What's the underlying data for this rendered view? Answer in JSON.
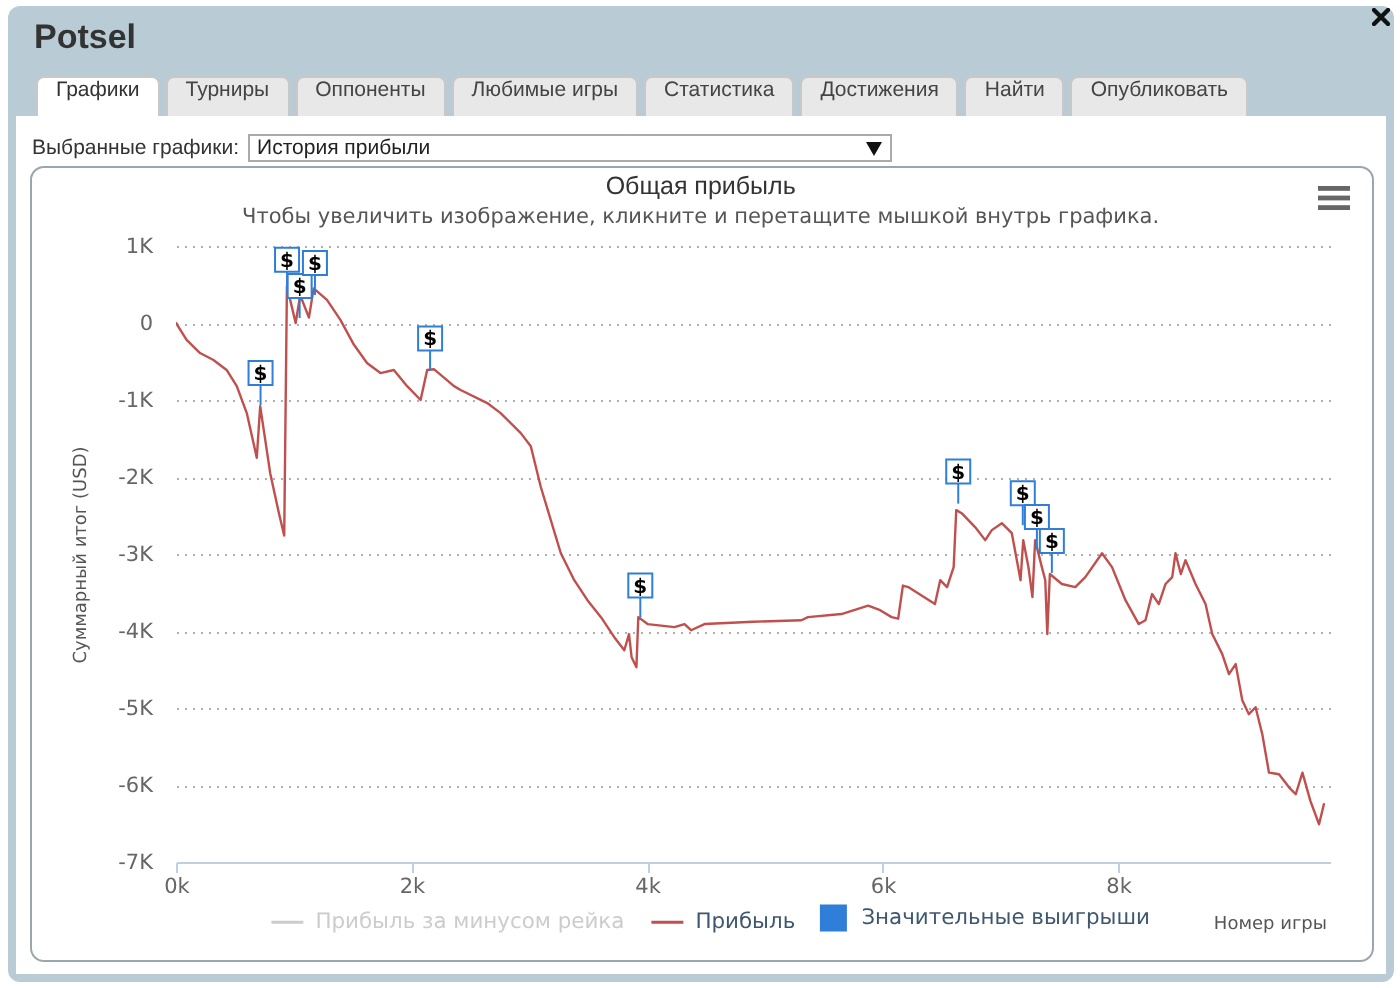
{
  "chart_data": {
    "type": "line",
    "title": "Общая прибыль",
    "subtitle": "Чтобы увеличить изображение, кликните и перетащите мышкой внутрь графика.",
    "xlabel": "Номер игры",
    "ylabel": "Суммарный итог (USD)",
    "annotations": [
      "Potsel",
      "Графики",
      "Турниры",
      "Оппоненты",
      "Любимые игры",
      "Статистика",
      "Достижения",
      "Найти",
      "Опубликовать",
      "Выбранные графики:",
      "История прибыли"
    ],
    "series": [
      {
        "name": "Прибыль за минусом рейка",
        "color": "#cccccc"
      },
      {
        "name": "Прибыль",
        "color": "#c0504d",
        "x": [
          0,
          90,
          204,
          318,
          430,
          516,
          601,
          686,
          715,
          800,
          874,
          919,
          942,
          1016,
          1055,
          1129,
          1169,
          1282,
          1396,
          1510,
          1622,
          1736,
          1850,
          1963,
          2077,
          2133,
          2190,
          2361,
          2417,
          2643,
          2757,
          2928,
          3013,
          3098,
          3183,
          3268,
          3382,
          3494,
          3609,
          3722,
          3807,
          3847,
          3869,
          3910,
          3926,
          4005,
          4233,
          4318,
          4374,
          4488,
          4900,
          5311,
          5367,
          5651,
          5878,
          5980,
          6077,
          6133,
          6173,
          6218,
          6445,
          6490,
          6548,
          6604,
          6626,
          6672,
          6786,
          6872,
          6928,
          7013,
          7098,
          7172,
          7195,
          7239,
          7273,
          7296,
          7353,
          7382,
          7399,
          7421,
          7523,
          7637,
          7722,
          7864,
          7949,
          8063,
          8176,
          8233,
          8289,
          8346,
          8403,
          8460,
          8488,
          8533,
          8573,
          8658,
          8743,
          8800,
          8885,
          8942,
          8999,
          9055,
          9111,
          9168,
          9225,
          9282,
          9367,
          9452,
          9509,
          9566,
          9634,
          9707,
          9748
        ],
        "values": [
          0,
          -220,
          -390,
          -480,
          -610,
          -820,
          -1170,
          -1750,
          -1080,
          -1950,
          -2470,
          -2760,
          480,
          0,
          360,
          70,
          450,
          300,
          40,
          -280,
          -520,
          -650,
          -610,
          -820,
          -1000,
          -610,
          -600,
          -820,
          -870,
          -1040,
          -1170,
          -1430,
          -1600,
          -2130,
          -2560,
          -2990,
          -3340,
          -3600,
          -3820,
          -4080,
          -4250,
          -4040,
          -4340,
          -4470,
          -3820,
          -3910,
          -3950,
          -3910,
          -3990,
          -3910,
          -3880,
          -3860,
          -3820,
          -3780,
          -3670,
          -3730,
          -3820,
          -3840,
          -3410,
          -3430,
          -3650,
          -3340,
          -3430,
          -3170,
          -2430,
          -2470,
          -2650,
          -2820,
          -2690,
          -2600,
          -2730,
          -3340,
          -2820,
          -3170,
          -3560,
          -2820,
          -3170,
          -3340,
          -4040,
          -3260,
          -3390,
          -3430,
          -3300,
          -2990,
          -3170,
          -3600,
          -3910,
          -3860,
          -3520,
          -3650,
          -3390,
          -3300,
          -2990,
          -3260,
          -3080,
          -3390,
          -3650,
          -4040,
          -4300,
          -4560,
          -4430,
          -4900,
          -5080,
          -4990,
          -5340,
          -5840,
          -5860,
          -6030,
          -6120,
          -5840,
          -6210,
          -6510,
          -6250
        ]
      },
      {
        "name": "Значительные выигрыши",
        "type": "scatter",
        "color": "#2f7ed8",
        "marker": "square",
        "x": [
          718,
          943,
          1050,
          1180,
          2158,
          3943,
          6643,
          7191,
          7311,
          7438
        ],
        "values": [
          -650,
          820,
          480,
          780,
          -200,
          -3410,
          -1930,
          -2210,
          -2520,
          -2830
        ],
        "value_labels": [
          "$",
          "$",
          "$",
          "$",
          "$",
          "$",
          "$",
          "$",
          "$",
          "$"
        ]
      }
    ],
    "xlim": [
      0,
      9800
    ],
    "xticks": [
      {
        "value": 0,
        "label": "0k"
      },
      {
        "value": 2000,
        "label": "2k"
      },
      {
        "value": 4000,
        "label": "4k"
      },
      {
        "value": 6000,
        "label": "6k"
      },
      {
        "value": 8000,
        "label": "8k"
      }
    ],
    "ylim": [
      -7000,
      1000
    ],
    "yticks": [
      {
        "value": -7000,
        "label": "-7K"
      },
      {
        "value": -6000,
        "label": "-6K"
      },
      {
        "value": -5000,
        "label": "-5K"
      },
      {
        "value": -4000,
        "label": "-4K"
      },
      {
        "value": -3000,
        "label": "-3K"
      },
      {
        "value": -2000,
        "label": "-2K"
      },
      {
        "value": -1000,
        "label": "-1K"
      },
      0,
      {
        "value": 1000,
        "label": "1K"
      }
    ],
    "grid": "y",
    "legend": "bottom"
  }
}
